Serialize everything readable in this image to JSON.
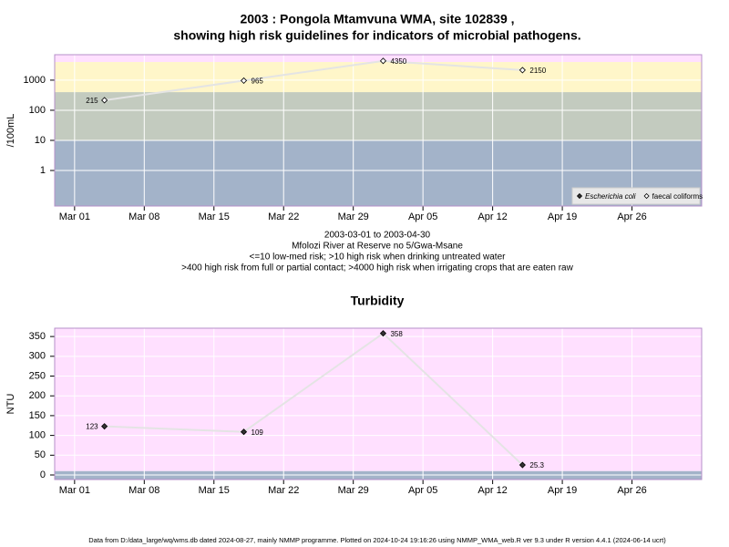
{
  "chart_data": [
    {
      "type": "line",
      "title": [
        "2003 : Pongola Mtamvuna WMA, site 102839 ,",
        "showing high risk guidelines for indicators of microbial pathogens."
      ],
      "ylabel": "/100mL",
      "x": [
        "2003-03-04",
        "2003-03-18",
        "2003-04-01",
        "2003-04-15"
      ],
      "series": [
        {
          "name": "Escherichia coli",
          "color": "#000000",
          "marker": "filled",
          "values": [
            null,
            null,
            null,
            null
          ]
        },
        {
          "name": "faecal coliforms",
          "color": "#000000",
          "marker": "open",
          "values": [
            215,
            965,
            4350,
            2150
          ]
        }
      ],
      "log_y": true,
      "ylim": [
        0.066,
        7000
      ],
      "yticks": [
        1,
        10,
        100,
        1000
      ],
      "xlim": [
        "2003-02-27",
        "2003-05-03"
      ],
      "xticks": [
        {
          "value": "2003-03-01",
          "label": "Mar 01"
        },
        {
          "value": "2003-03-08",
          "label": "Mar 08"
        },
        {
          "value": "2003-03-15",
          "label": "Mar 15"
        },
        {
          "value": "2003-03-22",
          "label": "Mar 22"
        },
        {
          "value": "2003-03-29",
          "label": "Mar 29"
        },
        {
          "value": "2003-04-05",
          "label": "Apr 05"
        },
        {
          "value": "2003-04-12",
          "label": "Apr 12"
        },
        {
          "value": "2003-04-19",
          "label": "Apr 19"
        },
        {
          "value": "2003-04-26",
          "label": "Apr 26"
        }
      ],
      "band_breaks": [
        10,
        400,
        4000
      ],
      "band_colors": [
        "#a3b3c9",
        "#c3cbbf",
        "#fff6c9",
        "#ffe0ff"
      ],
      "grid": true,
      "legend": "bottom-right",
      "notes": [
        "2003-03-01 to 2003-04-30",
        "Mfolozi River at Reserve no 5/Gwa-Msane",
        "<=10 low-med risk; >10 high risk when drinking untreated water",
        ">400 high risk from full or partial contact; >4000 high risk when irrigating crops that are eaten raw"
      ]
    },
    {
      "type": "line",
      "title": [
        "Turbidity"
      ],
      "ylabel": "NTU",
      "x": [
        "2003-03-04",
        "2003-03-18",
        "2003-04-01",
        "2003-04-15"
      ],
      "series": [
        {
          "color": "#000000",
          "marker": "filled",
          "values": [
            123,
            109,
            358,
            25.3
          ]
        }
      ],
      "log_y": false,
      "ylim": [
        -11.5,
        371
      ],
      "yticks": [
        0,
        50,
        100,
        150,
        200,
        250,
        300,
        350
      ],
      "xlim": [
        "2003-02-27",
        "2003-05-03"
      ],
      "xticks": [
        {
          "value": "2003-03-01",
          "label": "Mar 01"
        },
        {
          "value": "2003-03-08",
          "label": "Mar 08"
        },
        {
          "value": "2003-03-15",
          "label": "Mar 15"
        },
        {
          "value": "2003-03-22",
          "label": "Mar 22"
        },
        {
          "value": "2003-03-29",
          "label": "Mar 29"
        },
        {
          "value": "2003-04-05",
          "label": "Apr 05"
        },
        {
          "value": "2003-04-12",
          "label": "Apr 12"
        },
        {
          "value": "2003-04-19",
          "label": "Apr 19"
        },
        {
          "value": "2003-04-26",
          "label": "Apr 26"
        }
      ],
      "band_breaks": [
        10
      ],
      "band_colors": [
        "#a3b3c9",
        "#ffe0ff"
      ],
      "grid": true
    }
  ],
  "footer": "Data from D:/data_large/wq/wms.db dated 2024-08-27, mainly NMMP programme. Plotted on 2024-10-24 19:16:26 using NMMP_WMA_web.R ver 9.3 under R version 4.4.1 (2024-06-14 ucrt)"
}
